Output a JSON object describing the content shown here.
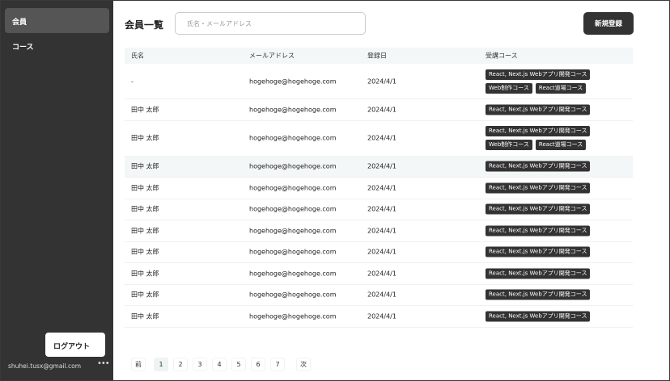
{
  "sidebar": {
    "items": [
      {
        "label": "会員",
        "active": true
      },
      {
        "label": "コース",
        "active": false
      }
    ],
    "logout": "ログアウト",
    "user_email": "shuhei.tusx@gmail.com",
    "more_icon": "ellipsis-icon"
  },
  "header": {
    "title": "会員一覧",
    "search_placeholder": "氏名・メールアドレス",
    "new_button": "新規登録"
  },
  "table": {
    "columns": [
      "氏名",
      "メールアドレス",
      "登録日",
      "受講コース"
    ],
    "rows": [
      {
        "name": "-",
        "email": "hogehoge@hogehoge.com",
        "date": "2024/4/1",
        "courses": [
          "React, Next.js Webアプリ開発コース",
          "Web制作コース",
          "React道場コース"
        ]
      },
      {
        "name": "田中 太郎",
        "email": "hogehoge@hogehoge.com",
        "date": "2024/4/1",
        "courses": [
          "React, Next.js Webアプリ開発コース"
        ]
      },
      {
        "name": "田中 太郎",
        "email": "hogehoge@hogehoge.com",
        "date": "2024/4/1",
        "courses": [
          "React, Next.js Webアプリ開発コース",
          "Web制作コース",
          "React道場コース"
        ]
      },
      {
        "name": "田中 太郎",
        "email": "hogehoge@hogehoge.com",
        "date": "2024/4/1",
        "courses": [
          "React, Next.js Webアプリ開発コース"
        ]
      },
      {
        "name": "田中 太郎",
        "email": "hogehoge@hogehoge.com",
        "date": "2024/4/1",
        "courses": [
          "React, Next.js Webアプリ開発コース"
        ]
      },
      {
        "name": "田中 太郎",
        "email": "hogehoge@hogehoge.com",
        "date": "2024/4/1",
        "courses": [
          "React, Next.js Webアプリ開発コース"
        ]
      },
      {
        "name": "田中 太郎",
        "email": "hogehoge@hogehoge.com",
        "date": "2024/4/1",
        "courses": [
          "React, Next.js Webアプリ開発コース"
        ]
      },
      {
        "name": "田中 太郎",
        "email": "hogehoge@hogehoge.com",
        "date": "2024/4/1",
        "courses": [
          "React, Next.js Webアプリ開発コース"
        ]
      },
      {
        "name": "田中 太郎",
        "email": "hogehoge@hogehoge.com",
        "date": "2024/4/1",
        "courses": [
          "React, Next.js Webアプリ開発コース"
        ]
      },
      {
        "name": "田中 太郎",
        "email": "hogehoge@hogehoge.com",
        "date": "2024/4/1",
        "courses": [
          "React, Next.js Webアプリ開発コース"
        ]
      },
      {
        "name": "田中 太郎",
        "email": "hogehoge@hogehoge.com",
        "date": "2024/4/1",
        "courses": [
          "React, Next.js Webアプリ開発コース"
        ]
      }
    ]
  },
  "pagination": {
    "prev": "前",
    "pages": [
      "1",
      "2",
      "3",
      "4",
      "5",
      "6",
      "7"
    ],
    "current": "1",
    "next": "次"
  }
}
